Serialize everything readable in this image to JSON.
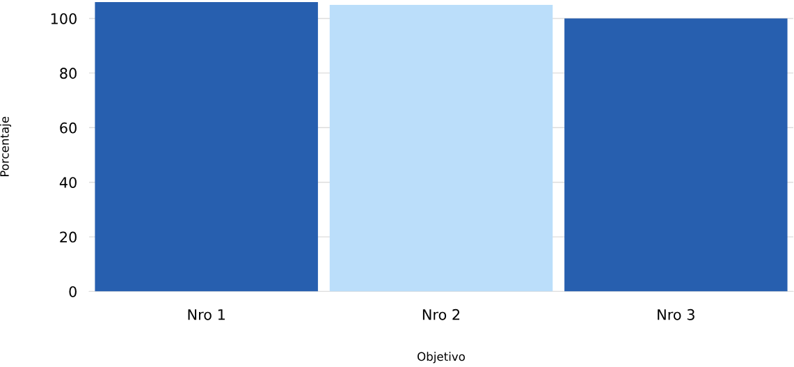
{
  "chart_data": {
    "type": "bar",
    "xlabel": "Objetivo",
    "ylabel": "Porcentaje",
    "categories": [
      "Nro 1",
      "Nro 2",
      "Nro 3"
    ],
    "values": [
      106,
      105,
      100
    ],
    "colors": [
      "#275faf",
      "#bbdefa",
      "#275faf"
    ],
    "ylim": [
      0,
      106
    ],
    "yticks": [
      0,
      20,
      40,
      60,
      80,
      100
    ],
    "grid": "y",
    "legend": false
  }
}
